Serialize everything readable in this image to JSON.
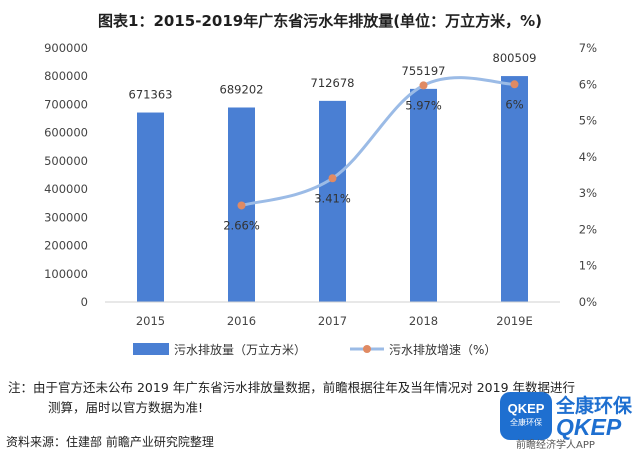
{
  "title": "图表1：2015-2019年广东省污水年排放量(单位：万立方米，%)",
  "chart_data": {
    "type": "bar+line",
    "categories": [
      "2015",
      "2016",
      "2017",
      "2018",
      "2019E"
    ],
    "bar_series": {
      "name": "污水排放量（万立方米）",
      "values": [
        671363,
        689202,
        712678,
        755197,
        800509
      ],
      "labels": [
        "671363",
        "689202",
        "712678",
        "755197",
        "800509"
      ],
      "color": "#4a7fd3"
    },
    "line_series": {
      "name": "污水排放增速（%）",
      "values": [
        null,
        2.66,
        3.41,
        5.97,
        6
      ],
      "labels": [
        "",
        "2.66%",
        "3.41%",
        "5.97%",
        "6%"
      ],
      "line_color": "#9bbbe6",
      "marker_color": "#e08a63"
    },
    "y_left": {
      "ylim": [
        0,
        900000
      ],
      "ticks": [
        "0",
        "100000",
        "200000",
        "300000",
        "400000",
        "500000",
        "600000",
        "700000",
        "800000",
        "900000"
      ]
    },
    "y_right": {
      "ylim": [
        0,
        7
      ],
      "ticks": [
        "0%",
        "1%",
        "2%",
        "3%",
        "4%",
        "5%",
        "6%",
        "7%"
      ]
    },
    "grid": false,
    "legend_position": "bottom"
  },
  "note": {
    "line1": "注：由于官方还未公布 2019 年广东省污水排放量数据，前瞻根据往年及当年情况对 2019 年数据进行",
    "line2": "测算，届时以官方数据为准!"
  },
  "source": "资料来源：住建部 前瞻产业研究院整理",
  "logo": {
    "mark_big": "QKEP",
    "mark_small": "全康环保",
    "text1": "全康环保",
    "text2": "QKEP",
    "sub": "前瞻经济学人APP"
  }
}
